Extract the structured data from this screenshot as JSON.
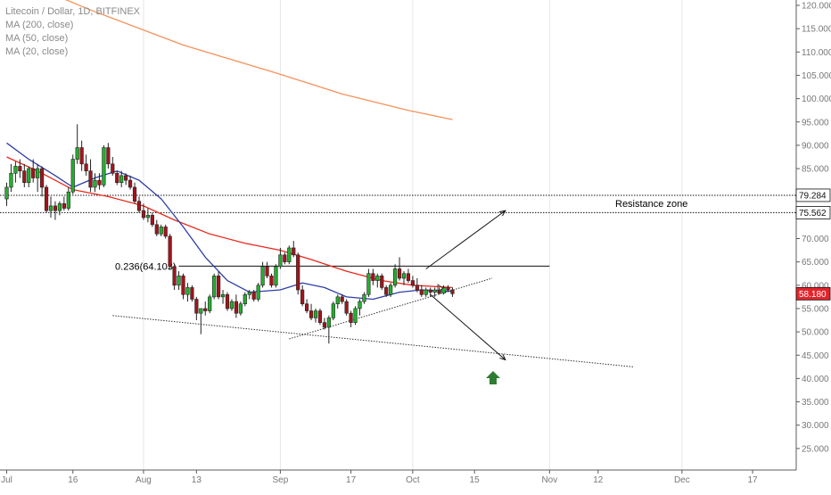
{
  "legend": {
    "symbol": "Litecoin / Dollar, 1D, BITFINEX",
    "ma200": "MA (200, close)",
    "ma50": "MA (50, close)",
    "ma20": "MA (20, close)"
  },
  "colors": {
    "bull": "#22b02e",
    "bear": "#a3141b",
    "ma200": "#f5915a",
    "ma50": "#e8291c",
    "ma20": "#2e3ea8",
    "last_price_bg": "#e3242b",
    "arrow_green": "#2e7d32",
    "grid": "#e6e6e6"
  },
  "chart_data": {
    "type": "candlestick",
    "title": "Litecoin / Dollar, 1D, BITFINEX",
    "x_tick_labels": [
      "Jul",
      "16",
      "Aug",
      "13",
      "Sep",
      "17",
      "Oct",
      "15",
      "Nov",
      "12",
      "Dec",
      "17"
    ],
    "y_tick_labels": [
      "120.000",
      "115.000",
      "110.000",
      "105.000",
      "100.000",
      "95.000",
      "90.000",
      "85.000",
      "80.000",
      "75.000",
      "70.000",
      "65.000",
      "60.000",
      "55.000",
      "50.000",
      "45.000",
      "40.000",
      "35.000",
      "30.000",
      "25.000"
    ],
    "ylim": [
      21.0,
      121.5
    ],
    "x_axis_dates": [
      "2018-07-01",
      "2018-12-25"
    ],
    "candles": [
      {
        "date": "2018-07-01",
        "o": 78.5,
        "h": 82.0,
        "l": 77.0,
        "c": 81.0
      },
      {
        "date": "2018-07-02",
        "o": 81.0,
        "h": 86.0,
        "l": 80.0,
        "c": 84.0
      },
      {
        "date": "2018-07-03",
        "o": 84.0,
        "h": 86.5,
        "l": 82.0,
        "c": 85.5
      },
      {
        "date": "2018-07-04",
        "o": 85.5,
        "h": 87.0,
        "l": 83.0,
        "c": 84.5
      },
      {
        "date": "2018-07-05",
        "o": 84.5,
        "h": 86.0,
        "l": 81.0,
        "c": 82.0
      },
      {
        "date": "2018-07-06",
        "o": 82.0,
        "h": 85.5,
        "l": 81.0,
        "c": 85.0
      },
      {
        "date": "2018-07-07",
        "o": 85.0,
        "h": 87.0,
        "l": 82.0,
        "c": 83.0
      },
      {
        "date": "2018-07-08",
        "o": 83.0,
        "h": 86.0,
        "l": 80.0,
        "c": 85.0
      },
      {
        "date": "2018-07-09",
        "o": 85.0,
        "h": 85.5,
        "l": 79.0,
        "c": 81.0
      },
      {
        "date": "2018-07-10",
        "o": 81.0,
        "h": 81.5,
        "l": 75.5,
        "c": 76.0
      },
      {
        "date": "2018-07-11",
        "o": 76.0,
        "h": 79.0,
        "l": 74.5,
        "c": 77.0
      },
      {
        "date": "2018-07-12",
        "o": 77.0,
        "h": 78.0,
        "l": 74.0,
        "c": 76.0
      },
      {
        "date": "2018-07-13",
        "o": 76.0,
        "h": 78.0,
        "l": 75.0,
        "c": 77.5
      },
      {
        "date": "2018-07-14",
        "o": 77.5,
        "h": 79.0,
        "l": 76.0,
        "c": 76.5
      },
      {
        "date": "2018-07-15",
        "o": 76.5,
        "h": 81.0,
        "l": 76.0,
        "c": 80.0
      },
      {
        "date": "2018-07-16",
        "o": 80.0,
        "h": 88.0,
        "l": 79.5,
        "c": 87.0
      },
      {
        "date": "2018-07-17",
        "o": 87.0,
        "h": 94.5,
        "l": 86.0,
        "c": 89.5
      },
      {
        "date": "2018-07-18",
        "o": 89.5,
        "h": 91.0,
        "l": 84.5,
        "c": 86.0
      },
      {
        "date": "2018-07-19",
        "o": 86.0,
        "h": 88.0,
        "l": 83.5,
        "c": 84.5
      },
      {
        "date": "2018-07-20",
        "o": 84.5,
        "h": 87.0,
        "l": 80.0,
        "c": 81.0
      },
      {
        "date": "2018-07-21",
        "o": 81.0,
        "h": 84.0,
        "l": 80.0,
        "c": 82.5
      },
      {
        "date": "2018-07-22",
        "o": 82.5,
        "h": 84.0,
        "l": 80.5,
        "c": 81.5
      },
      {
        "date": "2018-07-23",
        "o": 81.5,
        "h": 90.0,
        "l": 81.0,
        "c": 89.5
      },
      {
        "date": "2018-07-24",
        "o": 89.5,
        "h": 90.5,
        "l": 85.0,
        "c": 86.0
      },
      {
        "date": "2018-07-25",
        "o": 86.0,
        "h": 87.5,
        "l": 83.5,
        "c": 84.0
      },
      {
        "date": "2018-07-26",
        "o": 84.0,
        "h": 84.5,
        "l": 81.5,
        "c": 82.0
      },
      {
        "date": "2018-07-27",
        "o": 82.0,
        "h": 84.5,
        "l": 81.0,
        "c": 83.5
      },
      {
        "date": "2018-07-28",
        "o": 83.5,
        "h": 84.0,
        "l": 81.5,
        "c": 82.5
      },
      {
        "date": "2018-07-29",
        "o": 82.5,
        "h": 83.5,
        "l": 80.5,
        "c": 81.0
      },
      {
        "date": "2018-07-30",
        "o": 81.0,
        "h": 82.0,
        "l": 77.5,
        "c": 78.0
      },
      {
        "date": "2018-07-31",
        "o": 78.0,
        "h": 79.0,
        "l": 75.5,
        "c": 76.0
      },
      {
        "date": "2018-08-01",
        "o": 76.0,
        "h": 77.5,
        "l": 74.0,
        "c": 74.5
      },
      {
        "date": "2018-08-02",
        "o": 74.5,
        "h": 76.5,
        "l": 73.5,
        "c": 75.0
      },
      {
        "date": "2018-08-03",
        "o": 75.0,
        "h": 75.5,
        "l": 72.5,
        "c": 73.0
      },
      {
        "date": "2018-08-04",
        "o": 73.0,
        "h": 74.0,
        "l": 70.5,
        "c": 71.0
      },
      {
        "date": "2018-08-05",
        "o": 71.0,
        "h": 73.0,
        "l": 70.5,
        "c": 72.5
      },
      {
        "date": "2018-08-06",
        "o": 72.5,
        "h": 73.0,
        "l": 70.0,
        "c": 70.5
      },
      {
        "date": "2018-08-07",
        "o": 70.5,
        "h": 71.0,
        "l": 63.5,
        "c": 64.0
      },
      {
        "date": "2018-08-08",
        "o": 64.0,
        "h": 64.5,
        "l": 59.0,
        "c": 60.0
      },
      {
        "date": "2018-08-09",
        "o": 60.0,
        "h": 63.0,
        "l": 59.0,
        "c": 62.0
      },
      {
        "date": "2018-08-10",
        "o": 62.0,
        "h": 62.5,
        "l": 57.0,
        "c": 58.0
      },
      {
        "date": "2018-08-11",
        "o": 58.0,
        "h": 60.5,
        "l": 56.5,
        "c": 59.5
      },
      {
        "date": "2018-08-12",
        "o": 59.5,
        "h": 60.0,
        "l": 56.5,
        "c": 57.0
      },
      {
        "date": "2018-08-13",
        "o": 57.0,
        "h": 57.5,
        "l": 52.5,
        "c": 54.0
      },
      {
        "date": "2018-08-14",
        "o": 54.0,
        "h": 55.0,
        "l": 49.5,
        "c": 55.0
      },
      {
        "date": "2018-08-15",
        "o": 55.0,
        "h": 56.5,
        "l": 53.5,
        "c": 54.5
      },
      {
        "date": "2018-08-16",
        "o": 54.5,
        "h": 58.0,
        "l": 54.0,
        "c": 57.5
      },
      {
        "date": "2018-08-17",
        "o": 57.5,
        "h": 62.5,
        "l": 57.0,
        "c": 62.0
      },
      {
        "date": "2018-08-18",
        "o": 62.0,
        "h": 63.0,
        "l": 57.0,
        "c": 57.5
      },
      {
        "date": "2018-08-19",
        "o": 57.5,
        "h": 59.0,
        "l": 56.0,
        "c": 58.0
      },
      {
        "date": "2018-08-20",
        "o": 58.0,
        "h": 58.5,
        "l": 54.5,
        "c": 55.0
      },
      {
        "date": "2018-08-21",
        "o": 55.0,
        "h": 57.0,
        "l": 54.5,
        "c": 56.5
      },
      {
        "date": "2018-08-22",
        "o": 56.5,
        "h": 58.0,
        "l": 53.0,
        "c": 54.0
      },
      {
        "date": "2018-08-23",
        "o": 54.0,
        "h": 56.5,
        "l": 53.5,
        "c": 56.0
      },
      {
        "date": "2018-08-24",
        "o": 56.0,
        "h": 58.5,
        "l": 55.5,
        "c": 58.0
      },
      {
        "date": "2018-08-25",
        "o": 58.0,
        "h": 59.0,
        "l": 57.0,
        "c": 58.5
      },
      {
        "date": "2018-08-26",
        "o": 58.5,
        "h": 59.0,
        "l": 56.5,
        "c": 57.0
      },
      {
        "date": "2018-08-27",
        "o": 57.0,
        "h": 60.5,
        "l": 56.5,
        "c": 60.0
      },
      {
        "date": "2018-08-28",
        "o": 60.0,
        "h": 65.0,
        "l": 59.5,
        "c": 64.0
      },
      {
        "date": "2018-08-29",
        "o": 64.0,
        "h": 65.0,
        "l": 61.5,
        "c": 62.0
      },
      {
        "date": "2018-08-30",
        "o": 62.0,
        "h": 62.5,
        "l": 59.5,
        "c": 60.0
      },
      {
        "date": "2018-08-31",
        "o": 60.0,
        "h": 64.5,
        "l": 59.5,
        "c": 64.0
      },
      {
        "date": "2018-09-01",
        "o": 64.0,
        "h": 68.0,
        "l": 63.5,
        "c": 66.5
      },
      {
        "date": "2018-09-02",
        "o": 66.5,
        "h": 67.0,
        "l": 64.5,
        "c": 65.0
      },
      {
        "date": "2018-09-03",
        "o": 65.0,
        "h": 68.5,
        "l": 64.5,
        "c": 68.0
      },
      {
        "date": "2018-09-04",
        "o": 68.0,
        "h": 69.5,
        "l": 66.0,
        "c": 66.5
      },
      {
        "date": "2018-09-05",
        "o": 66.5,
        "h": 67.0,
        "l": 58.0,
        "c": 59.0
      },
      {
        "date": "2018-09-06",
        "o": 59.0,
        "h": 60.0,
        "l": 55.5,
        "c": 56.0
      },
      {
        "date": "2018-09-07",
        "o": 56.0,
        "h": 57.0,
        "l": 54.0,
        "c": 54.5
      },
      {
        "date": "2018-09-08",
        "o": 54.5,
        "h": 56.0,
        "l": 52.5,
        "c": 53.0
      },
      {
        "date": "2018-09-09",
        "o": 53.0,
        "h": 55.0,
        "l": 52.0,
        "c": 54.5
      },
      {
        "date": "2018-09-10",
        "o": 54.5,
        "h": 55.0,
        "l": 51.5,
        "c": 52.0
      },
      {
        "date": "2018-09-11",
        "o": 52.0,
        "h": 53.0,
        "l": 50.5,
        "c": 51.0
      },
      {
        "date": "2018-09-12",
        "o": 51.0,
        "h": 53.5,
        "l": 47.5,
        "c": 53.0
      },
      {
        "date": "2018-09-13",
        "o": 53.0,
        "h": 56.5,
        "l": 52.5,
        "c": 56.0
      },
      {
        "date": "2018-09-14",
        "o": 56.0,
        "h": 58.0,
        "l": 55.0,
        "c": 57.5
      },
      {
        "date": "2018-09-15",
        "o": 57.5,
        "h": 58.0,
        "l": 56.0,
        "c": 56.5
      },
      {
        "date": "2018-09-16",
        "o": 56.5,
        "h": 57.0,
        "l": 53.5,
        "c": 54.0
      },
      {
        "date": "2018-09-17",
        "o": 54.0,
        "h": 54.5,
        "l": 51.0,
        "c": 52.0
      },
      {
        "date": "2018-09-18",
        "o": 52.0,
        "h": 55.5,
        "l": 51.5,
        "c": 55.0
      },
      {
        "date": "2018-09-19",
        "o": 55.0,
        "h": 57.0,
        "l": 53.5,
        "c": 56.5
      },
      {
        "date": "2018-09-20",
        "o": 56.5,
        "h": 58.5,
        "l": 56.0,
        "c": 58.0
      },
      {
        "date": "2018-09-21",
        "o": 58.0,
        "h": 63.5,
        "l": 57.5,
        "c": 62.5
      },
      {
        "date": "2018-09-22",
        "o": 62.5,
        "h": 63.5,
        "l": 60.0,
        "c": 61.0
      },
      {
        "date": "2018-09-23",
        "o": 61.0,
        "h": 62.5,
        "l": 59.5,
        "c": 62.0
      },
      {
        "date": "2018-09-24",
        "o": 62.0,
        "h": 62.5,
        "l": 59.0,
        "c": 59.5
      },
      {
        "date": "2018-09-25",
        "o": 59.5,
        "h": 60.0,
        "l": 57.5,
        "c": 58.0
      },
      {
        "date": "2018-09-26",
        "o": 58.0,
        "h": 60.5,
        "l": 57.5,
        "c": 60.0
      },
      {
        "date": "2018-09-27",
        "o": 60.0,
        "h": 64.5,
        "l": 59.5,
        "c": 63.5
      },
      {
        "date": "2018-09-28",
        "o": 63.5,
        "h": 66.0,
        "l": 61.0,
        "c": 61.5
      },
      {
        "date": "2018-09-29",
        "o": 61.5,
        "h": 63.0,
        "l": 60.0,
        "c": 62.5
      },
      {
        "date": "2018-09-30",
        "o": 62.5,
        "h": 63.5,
        "l": 60.5,
        "c": 61.0
      },
      {
        "date": "2018-10-01",
        "o": 61.0,
        "h": 62.0,
        "l": 59.5,
        "c": 60.0
      },
      {
        "date": "2018-10-02",
        "o": 60.0,
        "h": 61.5,
        "l": 58.5,
        "c": 59.0
      },
      {
        "date": "2018-10-03",
        "o": 59.0,
        "h": 60.0,
        "l": 57.5,
        "c": 58.0
      },
      {
        "date": "2018-10-04",
        "o": 58.0,
        "h": 59.5,
        "l": 57.5,
        "c": 59.0
      },
      {
        "date": "2018-10-05",
        "o": 59.0,
        "h": 59.5,
        "l": 57.5,
        "c": 58.5
      },
      {
        "date": "2018-10-06",
        "o": 58.5,
        "h": 59.5,
        "l": 57.5,
        "c": 59.0
      },
      {
        "date": "2018-10-07",
        "o": 59.0,
        "h": 59.5,
        "l": 58.0,
        "c": 58.3
      },
      {
        "date": "2018-10-08",
        "o": 58.3,
        "h": 60.0,
        "l": 58.0,
        "c": 59.5
      },
      {
        "date": "2018-10-09",
        "o": 59.5,
        "h": 60.0,
        "l": 58.5,
        "c": 59.0
      },
      {
        "date": "2018-10-10",
        "o": 59.0,
        "h": 59.5,
        "l": 57.5,
        "c": 58.18
      }
    ],
    "series": [
      {
        "name": "MA (200, close)",
        "color": "#f5915a",
        "points": [
          [
            "2018-07-01",
            126.5
          ],
          [
            "2018-07-20",
            119.0
          ],
          [
            "2018-08-10",
            111.5
          ],
          [
            "2018-08-31",
            105.5
          ],
          [
            "2018-09-15",
            101.0
          ],
          [
            "2018-09-30",
            97.5
          ],
          [
            "2018-10-10",
            95.5
          ]
        ]
      },
      {
        "name": "MA (50, close)",
        "color": "#e8291c",
        "points": [
          [
            "2018-07-01",
            87.5
          ],
          [
            "2018-07-08",
            84.5
          ],
          [
            "2018-07-16",
            80.5
          ],
          [
            "2018-07-24",
            79.0
          ],
          [
            "2018-08-01",
            77.0
          ],
          [
            "2018-08-08",
            74.0
          ],
          [
            "2018-08-16",
            71.0
          ],
          [
            "2018-08-24",
            69.0
          ],
          [
            "2018-09-01",
            67.5
          ],
          [
            "2018-09-08",
            65.5
          ],
          [
            "2018-09-16",
            63.0
          ],
          [
            "2018-09-24",
            61.0
          ],
          [
            "2018-10-01",
            60.0
          ],
          [
            "2018-10-10",
            59.5
          ]
        ]
      },
      {
        "name": "MA (20, close)",
        "color": "#2e3ea8",
        "points": [
          [
            "2018-07-01",
            90.5
          ],
          [
            "2018-07-06",
            87.0
          ],
          [
            "2018-07-12",
            83.5
          ],
          [
            "2018-07-16",
            81.0
          ],
          [
            "2018-07-21",
            83.0
          ],
          [
            "2018-07-26",
            84.5
          ],
          [
            "2018-07-31",
            82.5
          ],
          [
            "2018-08-05",
            78.5
          ],
          [
            "2018-08-10",
            72.5
          ],
          [
            "2018-08-15",
            66.0
          ],
          [
            "2018-08-20",
            61.0
          ],
          [
            "2018-08-25",
            58.5
          ],
          [
            "2018-09-01",
            59.0
          ],
          [
            "2018-09-06",
            60.5
          ],
          [
            "2018-09-11",
            59.5
          ],
          [
            "2018-09-16",
            57.5
          ],
          [
            "2018-09-22",
            57.0
          ],
          [
            "2018-09-28",
            58.5
          ],
          [
            "2018-10-03",
            59.0
          ],
          [
            "2018-10-10",
            58.7
          ]
        ]
      }
    ],
    "horizontal_lines": [
      {
        "value": 79.284,
        "style": "dotted",
        "label": "79.284"
      },
      {
        "value": 75.562,
        "style": "dotted",
        "label": "75.562"
      },
      {
        "value": 64.103,
        "style": "solid",
        "label": "0.236(64.103)",
        "start": "2018-08-09",
        "end": "2018-11-01"
      }
    ],
    "trend_lines": [
      {
        "style": "dotted",
        "from": [
          "2018-07-25",
          53.5
        ],
        "to": [
          "2018-11-20",
          42.5
        ]
      },
      {
        "style": "dotted",
        "from": [
          "2018-09-03",
          48.5
        ],
        "to": [
          "2018-10-19",
          61.5
        ]
      }
    ],
    "projection_arrows": [
      {
        "from": [
          "2018-10-04",
          63.5
        ],
        "to": [
          "2018-10-22",
          76.0
        ]
      },
      {
        "from": [
          "2018-10-05",
          58.0
        ],
        "to": [
          "2018-10-22",
          44.0
        ]
      }
    ],
    "annotations": {
      "resistance_zone": "Resistance zone",
      "fib_label": "0.236(64.103)",
      "last_price": "58.180",
      "level_high": "79.284",
      "level_low": "75.562"
    }
  }
}
